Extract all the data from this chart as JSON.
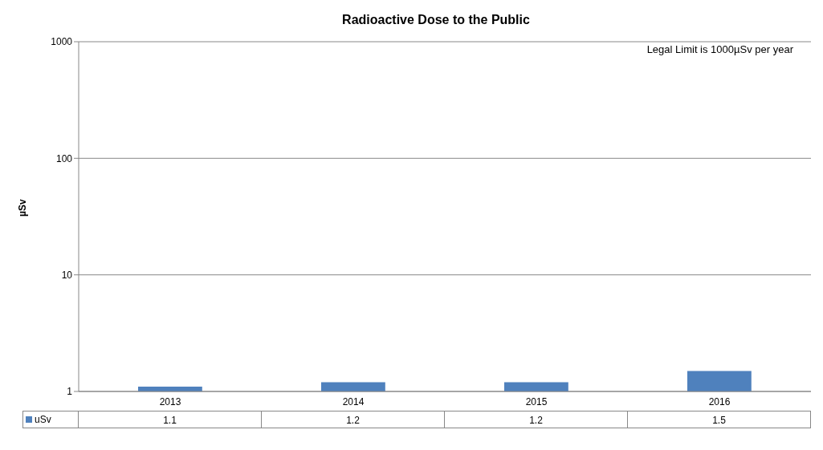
{
  "chart_data": {
    "type": "bar",
    "title": "Radioactive Dose to the Public",
    "ylabel": "µSv",
    "categories": [
      "2013",
      "2014",
      "2015",
      "2016"
    ],
    "series": [
      {
        "name": "uSv",
        "color": "#4f81bd",
        "values": [
          1.1,
          1.2,
          1.2,
          1.5
        ]
      }
    ],
    "log": "y",
    "ylim": [
      1,
      1000
    ],
    "yticks": [
      1,
      10,
      100,
      1000
    ],
    "grid": "y",
    "legend": "bottom",
    "data_labels": true,
    "annotations": [
      "Legal Limit is 1000µSv per year"
    ]
  }
}
